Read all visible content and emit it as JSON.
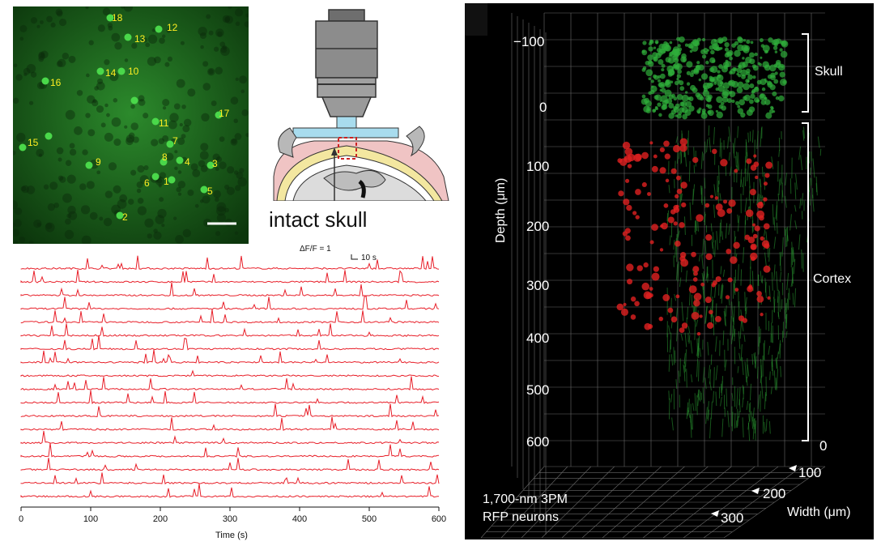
{
  "fluorescence_image": {
    "neuron_labels": [
      "1",
      "2",
      "3",
      "4",
      "5",
      "6",
      "7",
      "8",
      "9",
      "10",
      "11",
      "12",
      "13",
      "14",
      "15",
      "16",
      "17",
      "18"
    ],
    "colors": {
      "background": "#0d3a0d",
      "cell": "#4ad84a",
      "label": "#ffee22",
      "scale_bar": "#ffffff"
    }
  },
  "schematic": {
    "caption": "intact skull",
    "colors": {
      "objective": "#8c8c8c",
      "water": "#a8dcee",
      "skull": "#f3e7a0",
      "tissue": "#c8c8c8",
      "roi": "#cc2222"
    }
  },
  "chart_data": {
    "type": "line",
    "title": "",
    "xlabel": "Time (s)",
    "ylabel": "",
    "xlim": [
      0,
      600
    ],
    "x_ticks": [
      "0",
      "100",
      "200",
      "300",
      "400",
      "500",
      "600"
    ],
    "scale_bar": {
      "amplitude_label": "ΔF/F = 1",
      "time_label": "10 s"
    },
    "trace_count": 18,
    "series_color": "#e8202a"
  },
  "volume_render": {
    "depth_axis_label": "Depth (μm)",
    "depth_ticks": [
      "−100",
      "0",
      "100",
      "200",
      "300",
      "400",
      "500",
      "600"
    ],
    "width_axis_label": "Width (μm)",
    "width_ticks": [
      "0",
      "100",
      "200",
      "300"
    ],
    "region_labels": {
      "skull": "Skull",
      "cortex": "Cortex"
    },
    "caption_line1": "1,700-nm 3PM",
    "caption_line2": "RFP neurons",
    "colors": {
      "background": "#000000",
      "skull_signal": "#2fae3a",
      "neurons": "#e02020",
      "grid": "#6a6a6a"
    }
  }
}
